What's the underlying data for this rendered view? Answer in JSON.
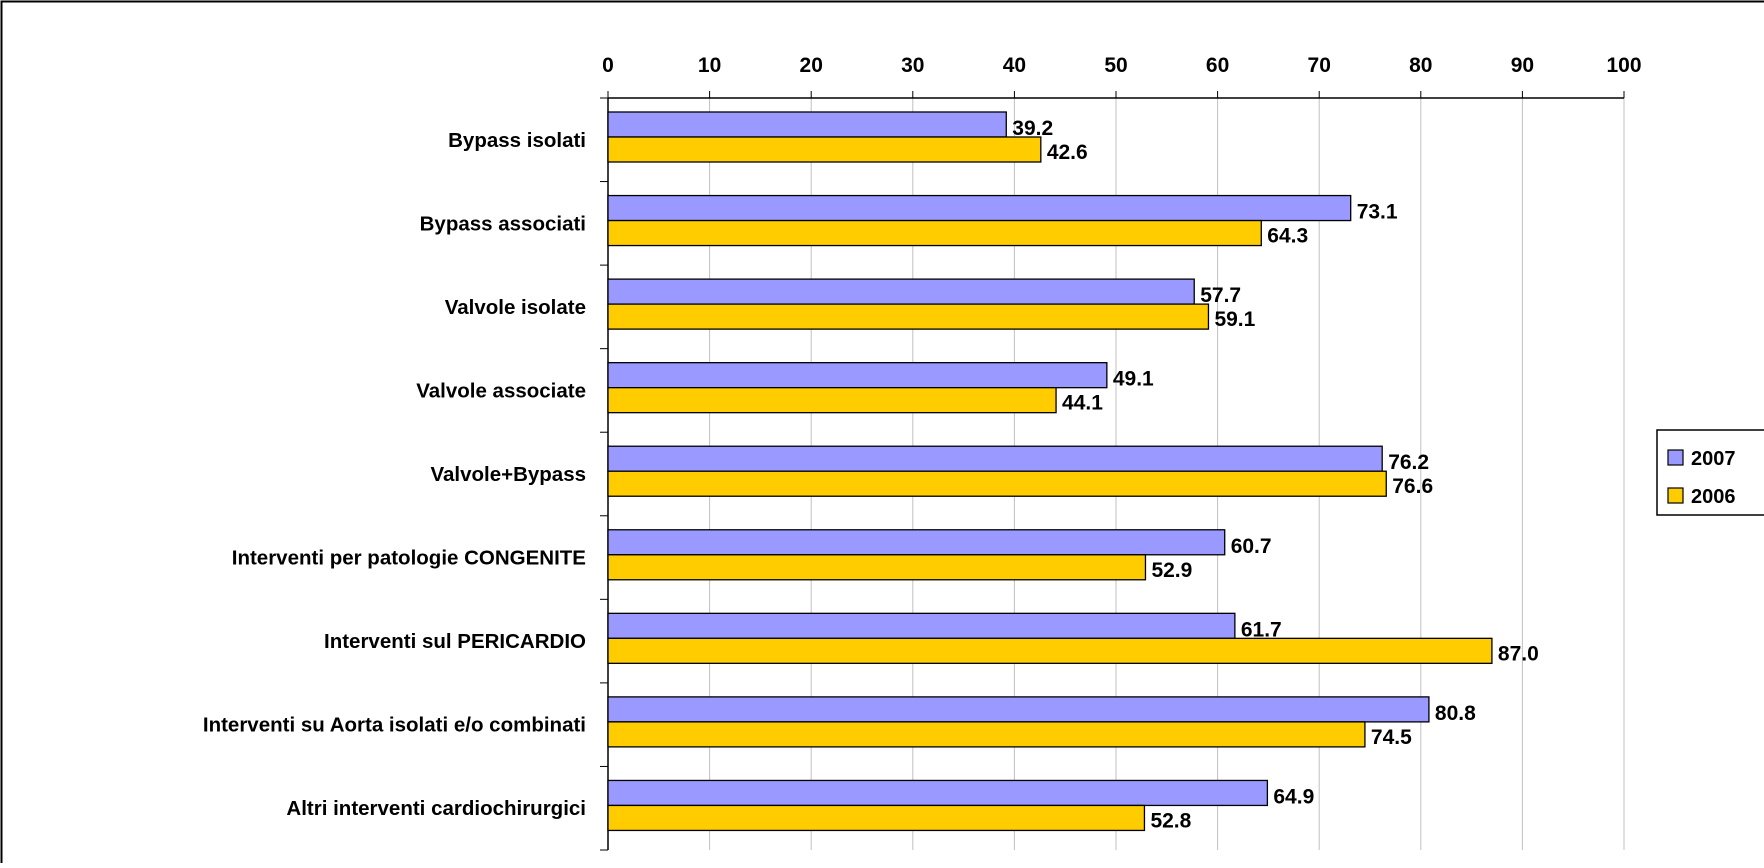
{
  "chart_data": {
    "type": "bar",
    "orientation": "horizontal",
    "title": "",
    "xlabel": "",
    "ylabel": "",
    "xlim": [
      0,
      100
    ],
    "x_ticks": [
      0,
      10,
      20,
      30,
      40,
      50,
      60,
      70,
      80,
      90,
      100
    ],
    "x_tick_labels": [
      "0",
      "10",
      "20",
      "30",
      "40",
      "50",
      "60",
      "70",
      "80",
      "90",
      "100"
    ],
    "x_axis_position": "top",
    "grid": true,
    "legend_position": "right (clipped)",
    "categories": [
      "Bypass isolati",
      "Bypass associati",
      "Valvole isolate",
      "Valvole associate",
      "Valvole+Bypass",
      "Interventi per patologie CONGENITE",
      "Interventi sul PERICARDIO",
      "Interventi su Aorta isolati e/o combinati",
      "Altri interventi cardiochirurgici"
    ],
    "series": [
      {
        "name": "2007",
        "color": "#9999ff",
        "values": [
          39.2,
          73.1,
          57.7,
          49.1,
          76.2,
          60.7,
          61.7,
          80.8,
          64.9
        ],
        "labels": [
          "39.2",
          "73.1",
          "57.7",
          "49.1",
          "76.2",
          "60.7",
          "61.7",
          "80.8",
          "64.9"
        ]
      },
      {
        "name": "2006",
        "color": "#ffcc00",
        "values": [
          42.6,
          64.3,
          59.1,
          44.1,
          76.6,
          52.9,
          87.0,
          74.5,
          52.8
        ],
        "labels": [
          "42.6",
          "64.3",
          "59.1",
          "44.1",
          "76.6",
          "52.9",
          "87.0",
          "74.5",
          "52.8"
        ]
      }
    ]
  }
}
